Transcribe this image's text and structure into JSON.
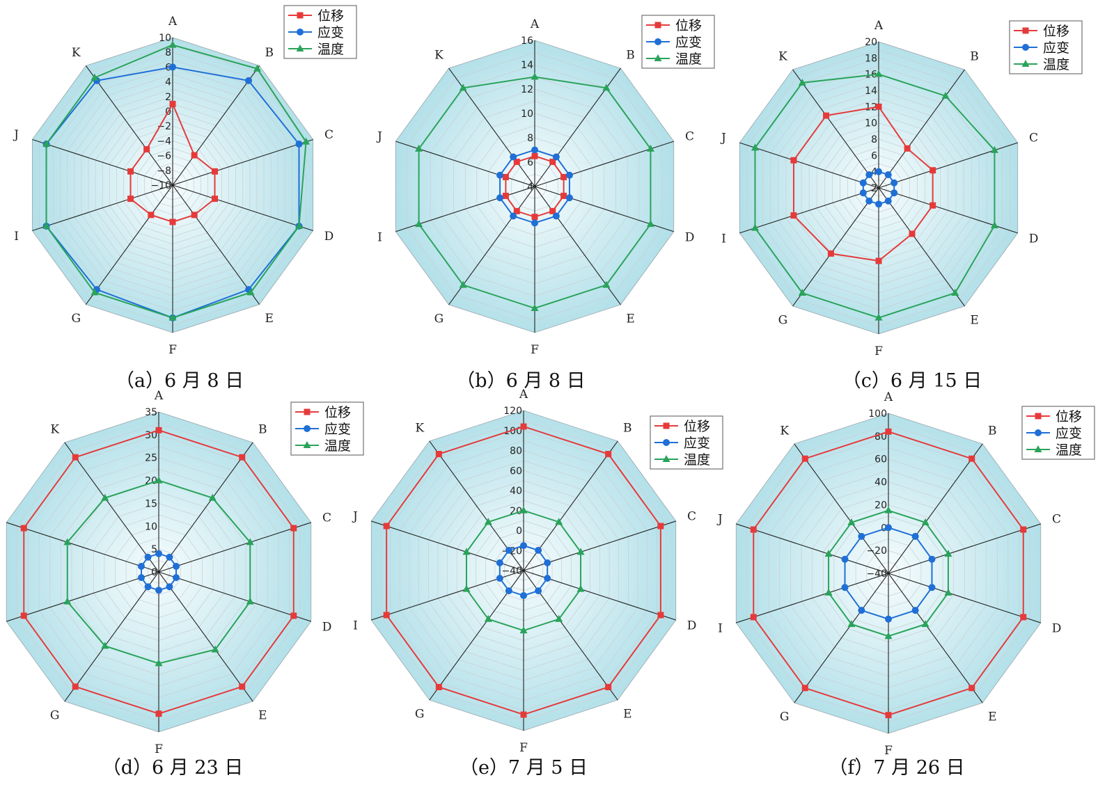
{
  "colors": {
    "series_1": "#e63a3a",
    "series_2": "#1f6fd6",
    "series_3": "#2aa35a",
    "fill_outer": "#b7e2ea",
    "fill_inner": "#f4fbfc"
  },
  "legend_placement": "top-right",
  "chart_data": [
    {
      "type": "radar",
      "caption": "（a）6 月 8 日",
      "axes": [
        "A",
        "B",
        "C",
        "D",
        "E",
        "F",
        "G",
        "I",
        "J",
        "K"
      ],
      "ticks": [
        -10,
        -8,
        -6,
        -4,
        -2,
        0,
        2,
        4,
        6,
        8,
        10
      ],
      "range": [
        -10,
        10
      ],
      "series": [
        {
          "name": "位移",
          "marker": "square",
          "values": [
            1,
            -5,
            -4,
            -4,
            -5,
            -5,
            -5,
            -4,
            -4,
            -4
          ]
        },
        {
          "name": "应变",
          "marker": "circle",
          "values": [
            6,
            7.5,
            8,
            8,
            7.5,
            8,
            7.5,
            8,
            8,
            7.5
          ]
        },
        {
          "name": "温度",
          "marker": "triangle",
          "values": [
            9,
            9.5,
            9,
            8,
            8,
            8,
            8,
            8,
            8,
            8
          ]
        }
      ]
    },
    {
      "type": "radar",
      "caption": "（b）6 月 8 日",
      "axes": [
        "A",
        "B",
        "C",
        "D",
        "E",
        "F",
        "G",
        "I",
        "J",
        "K"
      ],
      "ticks": [
        4,
        6,
        8,
        10,
        12,
        14,
        16
      ],
      "range": [
        4,
        16
      ],
      "series": [
        {
          "name": "位移",
          "marker": "square",
          "values": [
            6.5,
            6.5,
            6.5,
            6.5,
            6.5,
            6.5,
            6.5,
            6.5,
            6.5,
            6.5
          ]
        },
        {
          "name": "应变",
          "marker": "circle",
          "values": [
            7,
            7,
            7,
            7,
            7,
            7,
            7,
            7,
            7,
            7
          ]
        },
        {
          "name": "温度",
          "marker": "triangle",
          "values": [
            13,
            14,
            14,
            14,
            14,
            14,
            14,
            14,
            14,
            14
          ]
        }
      ]
    },
    {
      "type": "radar",
      "caption": "（c）6 月 15 日",
      "axes": [
        "A",
        "B",
        "C",
        "D",
        "E",
        "F",
        "G",
        "I",
        "J",
        "K"
      ],
      "ticks": [
        2,
        4,
        6,
        8,
        10,
        12,
        14,
        16,
        18,
        20
      ],
      "range": [
        2,
        20
      ],
      "series": [
        {
          "name": "位移",
          "marker": "square",
          "values": [
            12,
            8,
            9,
            9,
            9,
            11,
            12,
            13,
            13,
            13
          ]
        },
        {
          "name": "应变",
          "marker": "circle",
          "values": [
            4,
            4,
            4,
            4,
            4,
            4,
            4,
            4,
            4,
            4
          ]
        },
        {
          "name": "温度",
          "marker": "triangle",
          "values": [
            16,
            16,
            17,
            17,
            18,
            18,
            18,
            18,
            18,
            18
          ]
        }
      ]
    },
    {
      "type": "radar",
      "caption": "（d）6 月 23 日",
      "axes": [
        "A",
        "B",
        "C",
        "D",
        "E",
        "F",
        "G",
        "I",
        "J",
        "K"
      ],
      "ticks": [
        0,
        5,
        10,
        15,
        20,
        25,
        30,
        35
      ],
      "range": [
        0,
        35
      ],
      "series": [
        {
          "name": "位移",
          "marker": "square",
          "values": [
            31,
            31,
            31,
            31,
            31,
            31,
            31,
            31,
            31,
            31
          ]
        },
        {
          "name": "应变",
          "marker": "circle",
          "values": [
            4,
            4,
            4,
            4,
            4,
            4,
            4,
            4,
            4,
            4
          ]
        },
        {
          "name": "温度",
          "marker": "triangle",
          "values": [
            20,
            20,
            21,
            21,
            21,
            20,
            20,
            21,
            21,
            20
          ]
        }
      ]
    },
    {
      "type": "radar",
      "caption": "（e）7 月 5 日",
      "axes": [
        "A",
        "B",
        "C",
        "D",
        "E",
        "F",
        "G",
        "I",
        "J",
        "K"
      ],
      "ticks": [
        -40,
        -20,
        0,
        20,
        40,
        60,
        80,
        100,
        120
      ],
      "range": [
        -40,
        120
      ],
      "series": [
        {
          "name": "位移",
          "marker": "square",
          "values": [
            104,
            104,
            104,
            104,
            104,
            104,
            104,
            104,
            104,
            104
          ]
        },
        {
          "name": "应变",
          "marker": "circle",
          "values": [
            -15,
            -15,
            -15,
            -15,
            -15,
            -15,
            -15,
            -15,
            -15,
            -15
          ]
        },
        {
          "name": "温度",
          "marker": "triangle",
          "values": [
            20,
            20,
            20,
            20,
            20,
            20,
            20,
            20,
            20,
            20
          ]
        }
      ]
    },
    {
      "type": "radar",
      "caption": "（f）7 月 26 日",
      "axes": [
        "A",
        "B",
        "C",
        "D",
        "E",
        "F",
        "G",
        "I",
        "J",
        "K"
      ],
      "ticks": [
        -40,
        -20,
        0,
        20,
        40,
        60,
        80,
        100
      ],
      "range": [
        -40,
        100
      ],
      "series": [
        {
          "name": "位移",
          "marker": "square",
          "values": [
            84,
            84,
            84,
            84,
            84,
            84,
            84,
            84,
            84,
            84
          ]
        },
        {
          "name": "应变",
          "marker": "circle",
          "values": [
            0,
            0,
            0,
            0,
            0,
            0,
            0,
            0,
            0,
            0
          ]
        },
        {
          "name": "温度",
          "marker": "triangle",
          "values": [
            15,
            15,
            15,
            15,
            15,
            15,
            15,
            15,
            15,
            15
          ]
        }
      ]
    }
  ]
}
